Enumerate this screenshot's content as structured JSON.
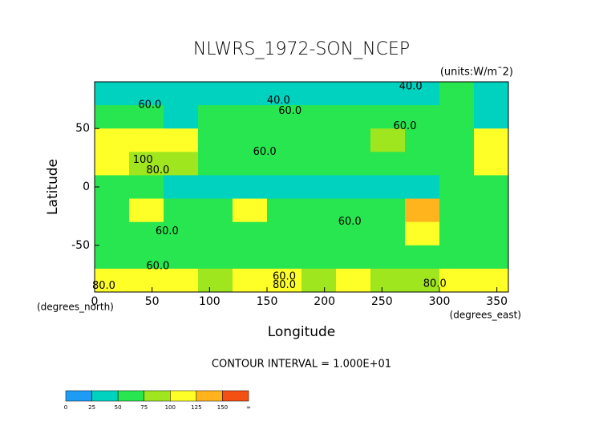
{
  "chart_data": {
    "type": "contour",
    "title": "NLWRS_1972-SON_NCEP",
    "units": "(units:W/m¯2)",
    "x_label": "Longitude",
    "y_label": "Latitude",
    "x_unit_label": "(degrees_east)",
    "y_unit_label": "(degrees_north)",
    "footnote": "CONTOUR INTERVAL = 1.000E+01",
    "xlim": [
      0,
      360
    ],
    "ylim": [
      -90,
      90
    ],
    "xticks": [
      0,
      50,
      100,
      150,
      200,
      250,
      300,
      350
    ],
    "yticks": [
      -50,
      0,
      50
    ],
    "lon": [
      15,
      45,
      75,
      105,
      135,
      165,
      195,
      225,
      255,
      285,
      315,
      345
    ],
    "lat": [
      80,
      60,
      40,
      20,
      0,
      -20,
      -40,
      -60,
      -80
    ],
    "z": [
      [
        45,
        40,
        35,
        35,
        40,
        40,
        45,
        40,
        35,
        45,
        60,
        45
      ],
      [
        60,
        55,
        45,
        50,
        55,
        55,
        55,
        55,
        65,
        50,
        50,
        45
      ],
      [
        110,
        100,
        110,
        65,
        55,
        55,
        55,
        60,
        90,
        60,
        55,
        100
      ],
      [
        120,
        80,
        80,
        60,
        50,
        55,
        60,
        60,
        60,
        55,
        55,
        110
      ],
      [
        55,
        50,
        45,
        45,
        40,
        40,
        40,
        40,
        40,
        45,
        50,
        50
      ],
      [
        60,
        100,
        50,
        55,
        110,
        55,
        55,
        55,
        55,
        140,
        55,
        55
      ],
      [
        55,
        55,
        60,
        55,
        60,
        60,
        60,
        55,
        55,
        100,
        55,
        55
      ],
      [
        55,
        60,
        65,
        60,
        65,
        60,
        60,
        60,
        60,
        60,
        55,
        60
      ],
      [
        110,
        100,
        110,
        90,
        100,
        120,
        90,
        100,
        95,
        80,
        100,
        110
      ]
    ],
    "contour_labels": [
      {
        "text": "60.0",
        "lon": 48,
        "lat": 70
      },
      {
        "text": "40.0",
        "lon": 160,
        "lat": 74
      },
      {
        "text": "60.0",
        "lon": 170,
        "lat": 65
      },
      {
        "text": "40.0",
        "lon": 275,
        "lat": 86
      },
      {
        "text": "60.0",
        "lon": 270,
        "lat": 52
      },
      {
        "text": "60.0",
        "lon": 148,
        "lat": 30
      },
      {
        "text": "100",
        "lon": 42,
        "lat": 23
      },
      {
        "text": "80.0",
        "lon": 55,
        "lat": 14
      },
      {
        "text": "60.0",
        "lon": 222,
        "lat": -30
      },
      {
        "text": "60.0",
        "lon": 63,
        "lat": -38
      },
      {
        "text": "60.0",
        "lon": 55,
        "lat": -68
      },
      {
        "text": "60.0",
        "lon": 165,
        "lat": -77
      },
      {
        "text": "80.0",
        "lon": 8,
        "lat": -85
      },
      {
        "text": "80.0",
        "lon": 165,
        "lat": -84
      },
      {
        "text": "80.0",
        "lon": 296,
        "lat": -83
      }
    ],
    "colorbar": {
      "levels": [
        0,
        25,
        50,
        75,
        100,
        125,
        150
      ],
      "end_label": "∞",
      "colors": [
        "#1e9cf5",
        "#00d2c0",
        "#28e650",
        "#a0e61e",
        "#ffff28",
        "#ffb41e",
        "#f55014",
        "#ff0000"
      ]
    }
  }
}
